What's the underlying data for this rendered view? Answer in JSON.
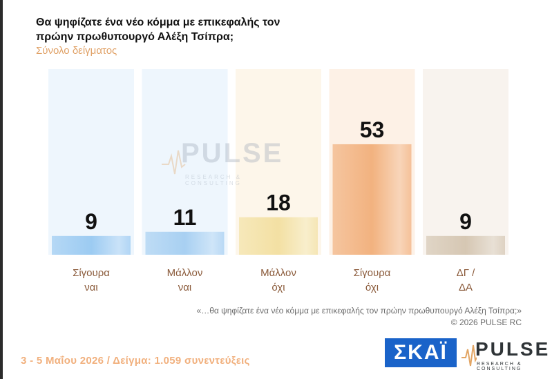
{
  "title": "Θα ψηφίζατε ένα νέο κόμμα με επικεφαλής τον πρώην πρωθυπουργό Αλέξη Τσίπρα;",
  "subtitle": "Σύνολο δείγματος",
  "watermark": {
    "word": "PULSE",
    "sub": "RESEARCH & CONSULTING"
  },
  "footnote": "«…θα ψηφίζατε ένα νέο κόμμα με επικεφαλής τον πρώην πρωθυπουργό Αλέξη Τσίπρα;»",
  "copyright": "©  2026  PULSE RC",
  "bottom_info": "3 - 5  Μαΐου 2026  /  Δείγμα:  1.059 συνεντεύξεις",
  "logos": {
    "skai": "ΣΚΑΪ",
    "pulse_word": "PULSE",
    "pulse_sub": "RESEARCH & CONSULTING"
  },
  "colors": {
    "blue": "#9ccbf2",
    "yellow": "#f3e0a3",
    "orange": "#f2b27f",
    "grey": "#d6c7b3",
    "accent": "#e0a166",
    "skai": "#1a63c9"
  },
  "chart_data": {
    "type": "bar",
    "categories": [
      [
        "Σίγουρα",
        "ναι"
      ],
      [
        "Μάλλον",
        "ναι"
      ],
      [
        "Μάλλον",
        "όχι"
      ],
      [
        "Σίγουρα",
        "όχι"
      ],
      [
        "ΔΓ /",
        "ΔΑ"
      ]
    ],
    "values": [
      9,
      11,
      18,
      53,
      9
    ],
    "bar_colors": [
      "#9ccbf2",
      "#a8d0f2",
      "#f3e0a3",
      "#f2b27f",
      "#d6c7b3"
    ],
    "column_bg_colors": [
      "#eef6fd",
      "#eef6fd",
      "#fdf6ea",
      "#fdf1e6",
      "#f8f3ee"
    ],
    "ylim": [
      0,
      100
    ],
    "grid": false,
    "legend": "none"
  }
}
